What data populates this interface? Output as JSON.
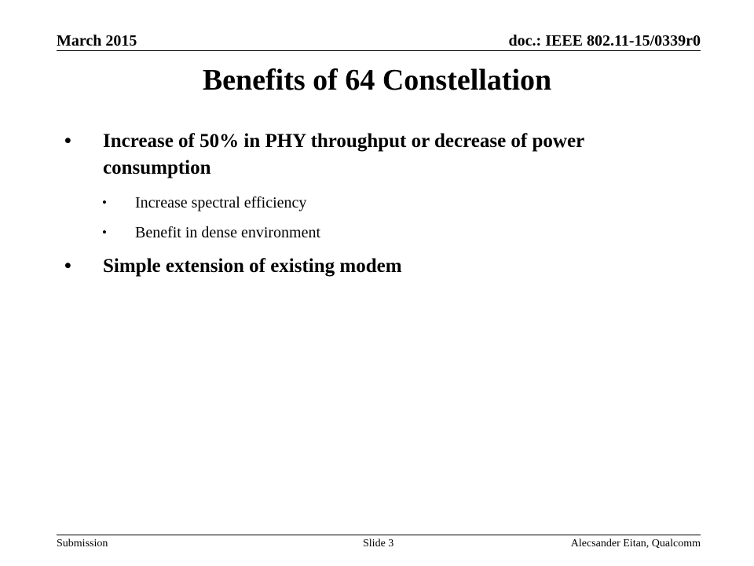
{
  "header": {
    "date": "March 2015",
    "doc_id": "doc.: IEEE 802.11-15/0339r0"
  },
  "slide": {
    "title": "Benefits of 64 Constellation",
    "bullets": [
      {
        "text": "Increase of 50% in PHY throughput or decrease of power consumption",
        "sub": [
          "Increase spectral efficiency",
          "Benefit in dense environment"
        ]
      },
      {
        "text": "Simple extension of existing modem",
        "sub": []
      }
    ],
    "bullet_glyph": "•"
  },
  "footer": {
    "left": "Submission",
    "center": "Slide 3",
    "right": "Alecsander Eitan, Qualcomm"
  }
}
